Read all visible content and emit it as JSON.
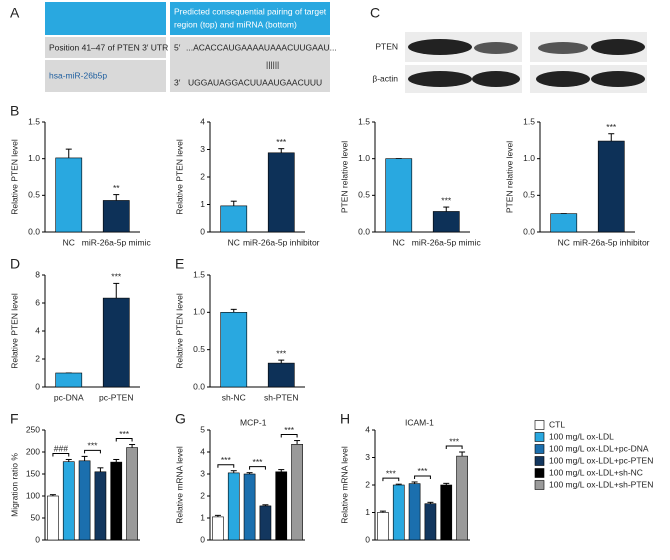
{
  "panel_a": {
    "label": "A",
    "header_lines": [
      "Predicted consequential pairing of target",
      "region (top) and miRNA (bottom)"
    ],
    "target_site": "Position 41–47 of PTEN 3′ UTR",
    "mirna": "hsa-miR-26b5p",
    "target_end": "5′",
    "target_seq": "...ACACCAUGAAAAUAAACUUGAAU...",
    "pairing": "||||||",
    "mirna_end": "3′",
    "mirna_seq": "UGGAUAGGACUUAAUGAACUUU"
  },
  "panel_c": {
    "label": "C",
    "rows": [
      "PTEN",
      "β-actin"
    ]
  },
  "legend": [
    {
      "name": "CTL",
      "color": "#ffffff"
    },
    {
      "name": "100 mg/L ox-LDL",
      "color": "#29a8e0"
    },
    {
      "name": "100 mg/L ox-LDL+pc-DNA",
      "color": "#1b6fae"
    },
    {
      "name": "100 mg/L ox-LDL+pc-PTEN",
      "color": "#13375f"
    },
    {
      "name": "100 mg/L ox-LDL+sh-NC",
      "color": "#000000"
    },
    {
      "name": "100 mg/L ox-LDL+sh-PTEN",
      "color": "#9a9a9a"
    }
  ],
  "chart_data": [
    {
      "type": "bar",
      "panel": "B",
      "ylabel": "Relative PTEN level",
      "categories": [
        "NC",
        "miR-26a-5p mimic"
      ],
      "values": [
        1.01,
        0.43
      ],
      "errors": [
        0.12,
        0.08
      ],
      "colors": [
        "#29a8e0",
        "#0d3158"
      ],
      "ylim": [
        0,
        1.5
      ],
      "yticks": [
        {
          "value": 0,
          "label": "0.0"
        },
        0.5,
        {
          "value": 1,
          "label": "1.0"
        },
        1.5
      ],
      "annotation": "**"
    },
    {
      "type": "bar",
      "ylabel": "Relative PTEN level",
      "categories": [
        "NC",
        "miR-26a-5p inhibitor"
      ],
      "values": [
        0.95,
        2.88
      ],
      "errors": [
        0.17,
        0.15
      ],
      "colors": [
        "#29a8e0",
        "#0d3158"
      ],
      "ylim": [
        0,
        4
      ],
      "yticks": [
        0,
        1,
        2,
        3,
        4
      ],
      "annotation": "***"
    },
    {
      "type": "bar",
      "ylabel": "PTEN relative level",
      "categories": [
        "NC",
        "miR-26a-5p mimic"
      ],
      "values": [
        1.0,
        0.28
      ],
      "errors": [
        0,
        0.06
      ],
      "colors": [
        "#29a8e0",
        "#0d3158"
      ],
      "ylim": [
        0,
        1.5
      ],
      "yticks": [
        {
          "value": 0,
          "label": "0.0"
        },
        0.5,
        {
          "value": 1,
          "label": "1.0"
        },
        1.5
      ],
      "annotation": "***"
    },
    {
      "type": "bar",
      "ylabel": "PTEN relative level",
      "categories": [
        "NC",
        "miR-26a-5p inhibitor"
      ],
      "values": [
        0.25,
        1.24
      ],
      "errors": [
        0,
        0.1
      ],
      "colors": [
        "#29a8e0",
        "#0d3158"
      ],
      "ylim": [
        0,
        1.5
      ],
      "yticks": [
        {
          "value": 0,
          "label": "0.0"
        },
        0.5,
        {
          "value": 1,
          "label": "1.0"
        },
        1.5
      ],
      "annotation": "***"
    },
    {
      "type": "bar",
      "panel": "D",
      "ylabel": "Relative PTEN level",
      "categories": [
        "pc-DNA",
        "pc-PTEN"
      ],
      "values": [
        1.0,
        6.35
      ],
      "errors": [
        0,
        1.05
      ],
      "colors": [
        "#29a8e0",
        "#0d3158"
      ],
      "ylim": [
        0,
        8
      ],
      "yticks": [
        0,
        2,
        4,
        6,
        8
      ],
      "annotation": "***"
    },
    {
      "type": "bar",
      "panel": "E",
      "ylabel": "Relative PTEN level",
      "categories": [
        "sh-NC",
        "sh-PTEN"
      ],
      "values": [
        1.0,
        0.32
      ],
      "errors": [
        0.04,
        0.04
      ],
      "colors": [
        "#29a8e0",
        "#0d3158"
      ],
      "ylim": [
        0,
        1.5
      ],
      "yticks": [
        {
          "value": 0,
          "label": "0.0"
        },
        0.5,
        {
          "value": 1,
          "label": "1.0"
        },
        1.5
      ],
      "annotation": "***"
    },
    {
      "type": "bar",
      "panel": "F",
      "ylabel": "Migration ratio %",
      "values": [
        100,
        178,
        180,
        155,
        177,
        210
      ],
      "errors": [
        3,
        5,
        10,
        9,
        6,
        7
      ],
      "ylim": [
        0,
        250
      ],
      "yticks": [
        0,
        50,
        100,
        150,
        200,
        250
      ],
      "brackets": [
        "###",
        "***",
        "***"
      ]
    },
    {
      "type": "bar",
      "panel": "G",
      "title": "MCP-1",
      "ylabel": "Relative mRNA level",
      "values": [
        1.05,
        3.05,
        3.0,
        1.55,
        3.1,
        4.35
      ],
      "errors": [
        0.07,
        0.1,
        0.06,
        0.05,
        0.1,
        0.17
      ],
      "ylim": [
        0,
        5
      ],
      "yticks": [
        0,
        1,
        2,
        3,
        4,
        5
      ],
      "brackets": [
        "***",
        "***",
        "***"
      ]
    },
    {
      "type": "bar",
      "panel": "H",
      "title": "ICAM-1",
      "ylabel": "Relative mRNA level",
      "values": [
        1.0,
        2.0,
        2.05,
        1.32,
        2.0,
        3.05
      ],
      "errors": [
        0.05,
        0.03,
        0.06,
        0.05,
        0.06,
        0.15
      ],
      "ylim": [
        0,
        4
      ],
      "yticks": [
        0,
        1,
        2,
        3,
        4
      ],
      "brackets": [
        "***",
        "***",
        "***"
      ]
    }
  ]
}
